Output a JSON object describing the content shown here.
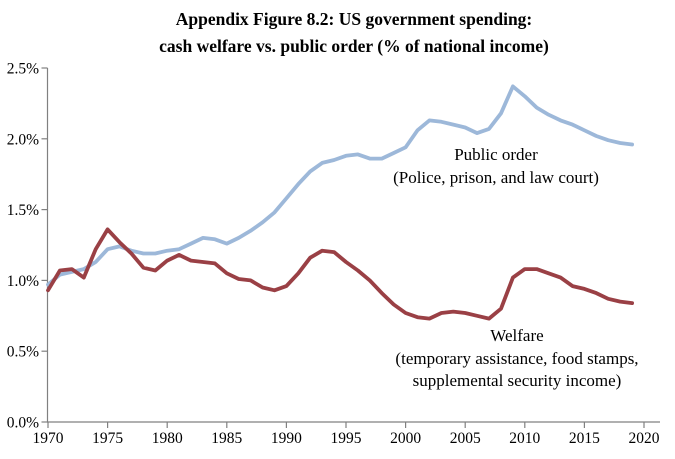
{
  "chart_data": {
    "type": "line",
    "title_line1": "Appendix Figure 8.2: US government spending:",
    "title_line2": "cash welfare vs. public order (% of national income)",
    "xlim": [
      1970,
      2020
    ],
    "ylim": [
      0,
      2.5
    ],
    "grid": false,
    "x_tick_labels": [
      "1970",
      "1975",
      "1980",
      "1985",
      "1990",
      "1995",
      "2000",
      "2005",
      "2010",
      "2015",
      "2020"
    ],
    "x_tick_values": [
      1970,
      1975,
      1980,
      1985,
      1990,
      1995,
      2000,
      2005,
      2010,
      2015,
      2020
    ],
    "y_tick_labels": [
      "0.0%",
      "0.5%",
      "1.0%",
      "1.5%",
      "2.0%",
      "2.5%"
    ],
    "y_tick_values": [
      0,
      0.5,
      1.0,
      1.5,
      2.0,
      2.5
    ],
    "axis_color": "#808080",
    "text_color": "#000000",
    "x": [
      1970,
      1971,
      1972,
      1973,
      1974,
      1975,
      1976,
      1977,
      1978,
      1979,
      1980,
      1981,
      1982,
      1983,
      1984,
      1985,
      1986,
      1987,
      1988,
      1989,
      1990,
      1991,
      1992,
      1993,
      1994,
      1995,
      1996,
      1997,
      1998,
      1999,
      2000,
      2001,
      2002,
      2003,
      2004,
      2005,
      2006,
      2007,
      2008,
      2009,
      2010,
      2011,
      2012,
      2013,
      2014,
      2015,
      2016,
      2017,
      2018,
      2019
    ],
    "series": [
      {
        "name": "Public order",
        "color": "#9db8d9",
        "annotation": [
          "Public order",
          "(Police, prison, and law court)"
        ],
        "values": [
          0.97,
          1.04,
          1.06,
          1.08,
          1.13,
          1.22,
          1.24,
          1.21,
          1.19,
          1.19,
          1.21,
          1.22,
          1.26,
          1.3,
          1.29,
          1.26,
          1.3,
          1.35,
          1.41,
          1.48,
          1.58,
          1.68,
          1.77,
          1.83,
          1.85,
          1.88,
          1.89,
          1.86,
          1.86,
          1.9,
          1.94,
          2.06,
          2.13,
          2.12,
          2.1,
          2.08,
          2.04,
          2.07,
          2.18,
          2.37,
          2.3,
          2.22,
          2.17,
          2.13,
          2.1,
          2.06,
          2.02,
          1.99,
          1.97,
          1.96
        ]
      },
      {
        "name": "Welfare",
        "color": "#9a4045",
        "annotation": [
          "Welfare",
          "(temporary assistance, food stamps,",
          "supplemental security income)"
        ],
        "values": [
          0.93,
          1.07,
          1.08,
          1.02,
          1.22,
          1.36,
          1.27,
          1.19,
          1.09,
          1.07,
          1.14,
          1.18,
          1.14,
          1.13,
          1.12,
          1.05,
          1.01,
          1.0,
          0.95,
          0.93,
          0.96,
          1.05,
          1.16,
          1.21,
          1.2,
          1.13,
          1.07,
          1.0,
          0.91,
          0.83,
          0.77,
          0.74,
          0.73,
          0.77,
          0.78,
          0.77,
          0.75,
          0.73,
          0.8,
          1.02,
          1.08,
          1.08,
          1.05,
          1.02,
          0.96,
          0.94,
          0.91,
          0.87,
          0.85,
          0.84
        ]
      }
    ]
  }
}
